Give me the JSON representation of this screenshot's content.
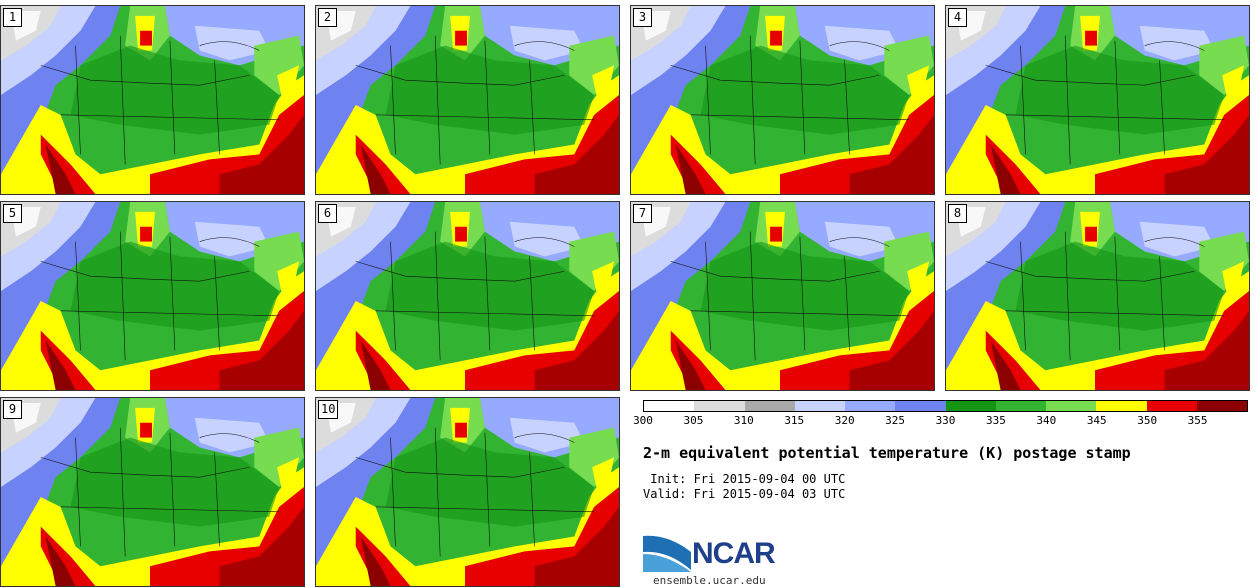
{
  "panels": [
    {
      "label": "1"
    },
    {
      "label": "2"
    },
    {
      "label": "3"
    },
    {
      "label": "4"
    },
    {
      "label": "5"
    },
    {
      "label": "6"
    },
    {
      "label": "7"
    },
    {
      "label": "8"
    },
    {
      "label": "9"
    },
    {
      "label": "10"
    }
  ],
  "legend": {
    "ticks": [
      "300",
      "305",
      "310",
      "315",
      "320",
      "325",
      "330",
      "335",
      "340",
      "345",
      "350",
      "355"
    ],
    "colors": [
      "#ffffff",
      "#dcdcdc",
      "#a9a9a9",
      "#c8d2ff",
      "#96aaff",
      "#6e82f0",
      "#149614",
      "#32b432",
      "#78dc50",
      "#ffff00",
      "#e60000",
      "#8c0000"
    ]
  },
  "title": "2-m equivalent potential temperature (K) postage stamp",
  "init": " Init: Fri 2015-09-04 00 UTC",
  "valid": "Valid: Fri 2015-09-04 03 UTC",
  "logo": {
    "text": "NCAR",
    "url": "ensemble.ucar.edu",
    "color": "#1e3f8a"
  }
}
